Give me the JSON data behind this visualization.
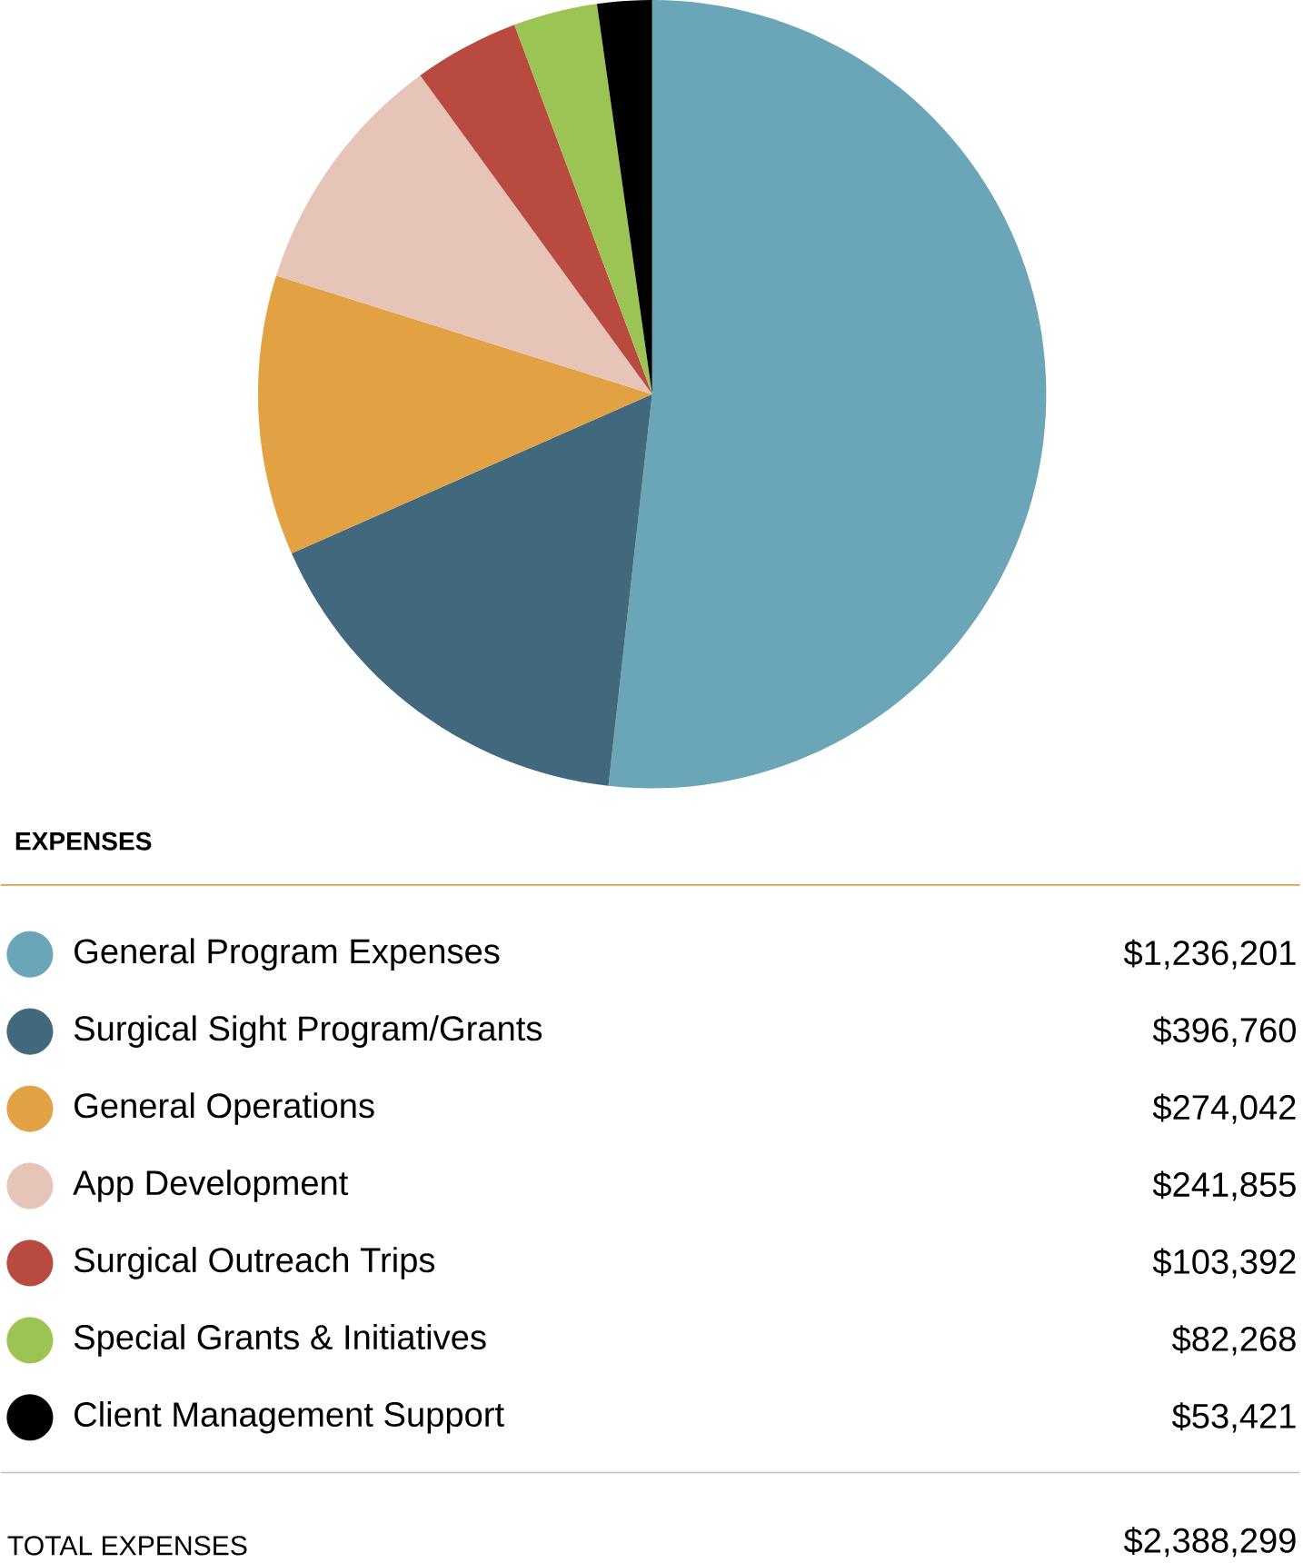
{
  "chart_data": {
    "type": "pie",
    "title": "EXPENSES",
    "categories": [
      "General Program Expenses",
      "Surgical Sight Program/Grants",
      "General Operations",
      "App Development",
      "Surgical Outreach Trips",
      "Special Grants & Initiatives",
      "Client Management Support"
    ],
    "values": [
      1236201,
      396760,
      274042,
      241855,
      103392,
      82268,
      53421
    ],
    "value_labels": [
      "$1,236,201",
      "$396,760",
      "$274,042",
      "$241,855",
      "$103,392",
      "$82,268",
      "$53,421"
    ],
    "colors": [
      "#6aa6b8",
      "#41687c",
      "#e2a243",
      "#e6c4b8",
      "#b84a3f",
      "#9bc454",
      "#000000"
    ],
    "legend": "bottom",
    "annotations": [
      "TOTAL EXPENSES",
      "$2,388,299"
    ]
  }
}
